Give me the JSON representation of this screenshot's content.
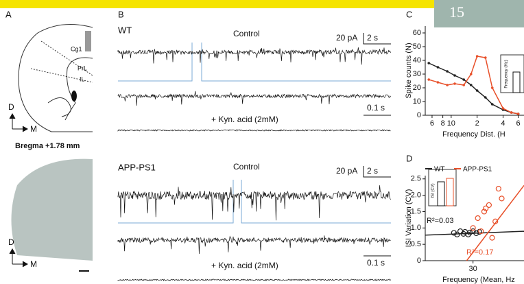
{
  "header": {
    "page_number": "15"
  },
  "panels": {
    "a": {
      "label": "A",
      "regions": [
        "Cg1",
        "PrL",
        "IL"
      ],
      "dorsal": "D",
      "medial": "M",
      "bregma": "Bregma +1.78 mm",
      "dorsal_lower": "D",
      "medial_lower": "M"
    },
    "b": {
      "label": "B",
      "wt": {
        "genotype": "WT",
        "condition": "Control",
        "scale_amp": "20 pA",
        "scale_time": "2 s",
        "zoom_scale": "0.1 s",
        "treatment": "+ Kyn. acid (2mM)"
      },
      "app": {
        "genotype": "APP-PS1",
        "condition": "Control",
        "scale_amp": "20 pA",
        "scale_time": "2 s",
        "zoom_scale": "0.1 s",
        "treatment": "+ Kyn. acid (2mM)"
      }
    },
    "c": {
      "label": "C",
      "inset_ylabel": "Frequency (Hz)"
    },
    "d": {
      "label": "D",
      "inset_ylabel": "ISI (CV)",
      "r2_wt": "R²=0.03",
      "r2_app": "R²=0.17"
    }
  },
  "chart_data": [
    {
      "type": "line",
      "ylabel": "Spike counts (N)",
      "xlabel": "Frequency Dist. (H",
      "log_x": true,
      "x": [
        5.5,
        7,
        9,
        11,
        14,
        17,
        20,
        25,
        30,
        40,
        50,
        60
      ],
      "series": [
        {
          "color": "#222222",
          "values": [
            38,
            35,
            32,
            29,
            26,
            22,
            18,
            13,
            8,
            4,
            2,
            1
          ]
        },
        {
          "color": "#e8502a",
          "values": [
            26,
            24,
            22,
            23,
            22,
            30,
            43,
            42,
            20,
            5,
            2,
            1
          ]
        }
      ],
      "xlim": [
        5,
        70
      ],
      "ylim": [
        0,
        65
      ],
      "xticks": [
        {
          "value": 6,
          "label": "6"
        },
        {
          "value": 8,
          "label": "8"
        },
        10,
        {
          "value": 20,
          "label": "2"
        },
        {
          "value": 40,
          "label": "4"
        },
        {
          "value": 60,
          "label": "6"
        }
      ],
      "yticks": [
        0,
        10,
        20,
        30,
        40,
        50,
        60
      ]
    },
    {
      "type": "scatter",
      "ylabel": "ISI Variation (CV)",
      "xlabel": "Frequency (Mean, Hz",
      "series": [
        {
          "name": "WT",
          "color": "#222222",
          "x": [
            18,
            20,
            22,
            24,
            25,
            27,
            28,
            30,
            32,
            34
          ],
          "values": [
            0.85,
            0.8,
            0.9,
            0.82,
            0.88,
            0.8,
            0.86,
            0.9,
            0.84,
            0.88
          ],
          "fit": {
            "x": [
              0,
              62
            ],
            "values": [
              0.78,
              0.9
            ]
          }
        },
        {
          "name": "APP-PS1",
          "color": "#e8502a",
          "x": [
            30,
            33,
            35,
            37,
            38,
            40,
            42,
            44,
            46,
            48
          ],
          "values": [
            1.0,
            1.3,
            0.9,
            1.5,
            1.6,
            1.7,
            0.7,
            1.2,
            2.2,
            1.9
          ],
          "fit": {
            "x": [
              26,
              62
            ],
            "values": [
              0,
              2.3
            ]
          }
        }
      ],
      "xlim": [
        0,
        62
      ],
      "ylim": [
        0,
        2.6
      ],
      "xticks": [
        30
      ],
      "yticks": [
        0,
        0.5,
        {
          "value": 1,
          "label": "1.0"
        },
        1.5,
        {
          "value": 2,
          "label": "2.0"
        },
        2.5
      ]
    }
  ]
}
